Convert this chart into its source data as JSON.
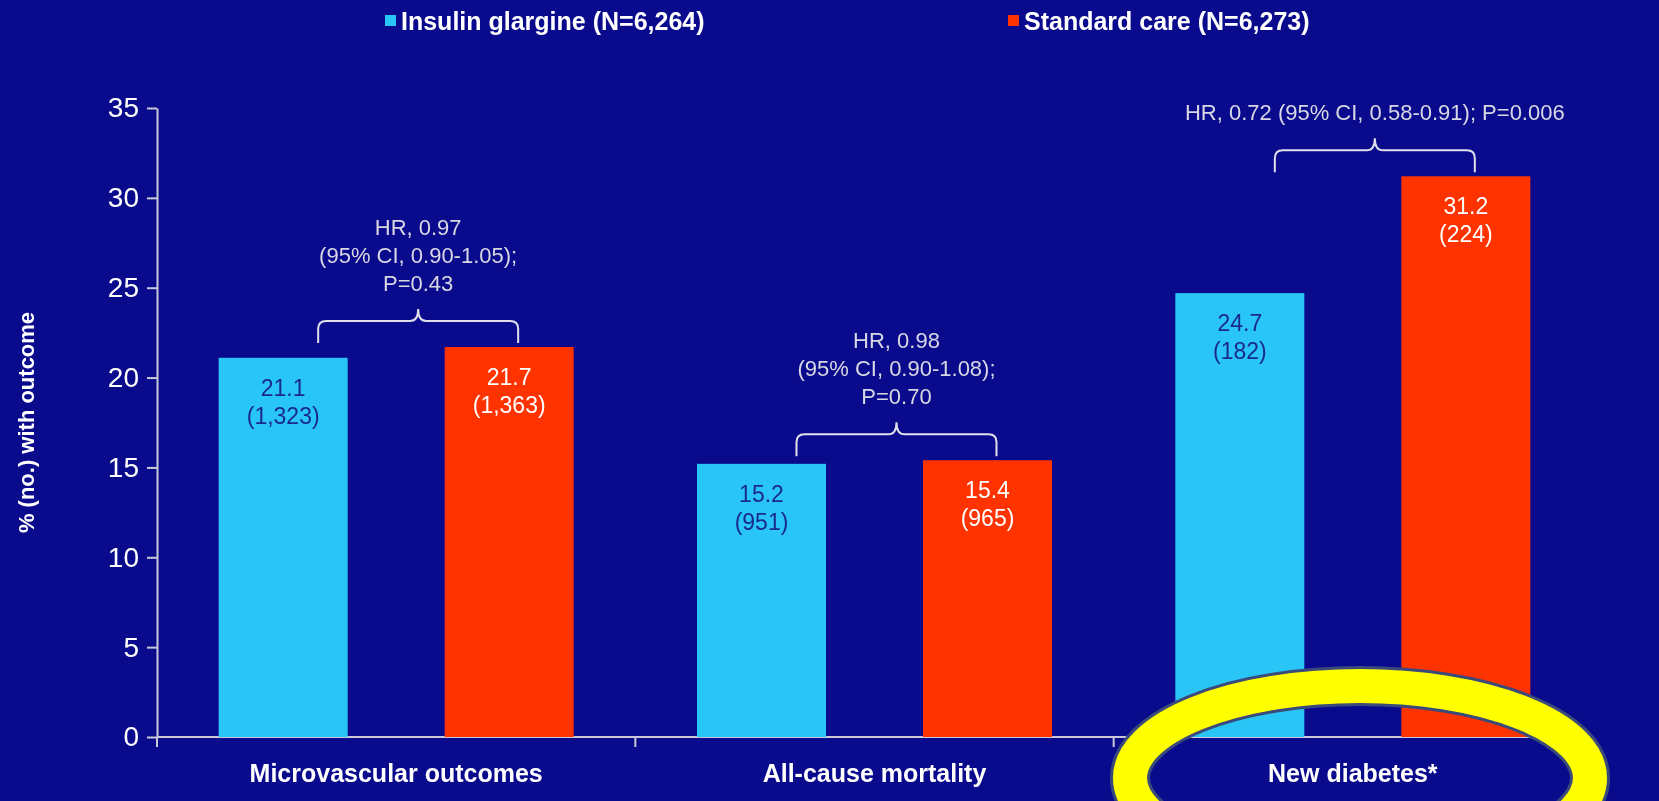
{
  "chart_data": {
    "type": "bar",
    "ylabel": "% (no.) with outcome",
    "categories": [
      "Microvascular outcomes",
      "All-cause mortality",
      "New diabetes*"
    ],
    "series": [
      {
        "name": "Insulin glargine (N=6,264)",
        "color": "#29c5f6",
        "values": [
          21.1,
          15.2,
          24.7
        ],
        "value_labels": [
          "21.1\n(1,323)",
          "15.2\n(951)",
          "24.7\n(182)"
        ]
      },
      {
        "name": "Standard care (N=6,273)",
        "color": "#ff3300",
        "values": [
          21.7,
          15.4,
          31.2
        ],
        "value_labels": [
          "21.7\n(1,363)",
          "15.4\n(965)",
          "31.2\n(224)"
        ]
      }
    ],
    "ylim": [
      0,
      35
    ],
    "yticks": [
      0,
      5,
      10,
      15,
      20,
      25,
      30,
      35
    ],
    "legend": "top",
    "grid": false,
    "annotations": [
      "HR, 0.97\n(95% CI, 0.90-1.05);\nP=0.43",
      "HR, 0.98\n(95% CI, 0.90-1.08);\nP=0.70",
      "HR, 0.72 (95% CI, 0.58-0.91); P=0.006"
    ]
  }
}
